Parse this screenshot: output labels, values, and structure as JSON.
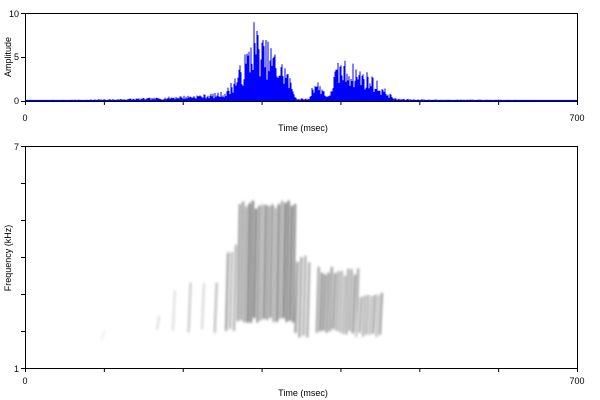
{
  "chart_data": [
    {
      "type": "area",
      "panel": "waveform",
      "ylabel": "Amplitude",
      "xlabel": "Time (msec)",
      "xlim": [
        0,
        700
      ],
      "ylim": [
        0,
        10
      ],
      "x_tick_labels": [
        "0",
        "700"
      ],
      "y_tick_labels": [
        "0",
        "5",
        "10"
      ],
      "grid": false,
      "series": [
        {
          "color": "#0000ff",
          "x": [
            0,
            100,
            170,
            195,
            215,
            240,
            255,
            275,
            285,
            290,
            300,
            315,
            322,
            330,
            345,
            360,
            367,
            378,
            385,
            392,
            400,
            410,
            420,
            430,
            440,
            450,
            470,
            500,
            700
          ],
          "values": [
            0.1,
            0.2,
            0.4,
            0.6,
            0.7,
            0.9,
            1.2,
            4.5,
            7.0,
            9.6,
            7.5,
            6.3,
            4.8,
            4.5,
            0.3,
            0.3,
            2.8,
            1.7,
            0.4,
            3.5,
            5.0,
            4.6,
            4.2,
            3.6,
            3.1,
            2.0,
            0.3,
            0.2,
            0.1
          ]
        }
      ]
    },
    {
      "type": "heatmap",
      "panel": "spectrogram",
      "ylabel": "Frequency (kHz)",
      "xlabel": "Time (msec)",
      "xlim": [
        0,
        700
      ],
      "ylim": [
        1,
        7
      ],
      "x_tick_labels": [
        "0",
        "700"
      ],
      "y_tick_labels": [
        "1",
        "7"
      ],
      "colormap": "grayscale",
      "grid": false,
      "segments": [
        {
          "t0": 95,
          "t1": 100,
          "f0": 1.8,
          "f1": 2.1,
          "intensity": 0.15
        },
        {
          "t0": 165,
          "t1": 170,
          "f0": 2.0,
          "f1": 2.5,
          "intensity": 0.2
        },
        {
          "t0": 185,
          "t1": 190,
          "f0": 2.0,
          "f1": 3.2,
          "intensity": 0.25
        },
        {
          "t0": 205,
          "t1": 210,
          "f0": 2.0,
          "f1": 3.2,
          "intensity": 0.3
        },
        {
          "t0": 222,
          "t1": 227,
          "f0": 2.0,
          "f1": 3.3,
          "intensity": 0.35
        },
        {
          "t0": 238,
          "t1": 243,
          "f0": 1.9,
          "f1": 3.3,
          "intensity": 0.4
        },
        {
          "t0": 255,
          "t1": 265,
          "f0": 2.0,
          "f1": 4.2,
          "intensity": 0.55
        },
        {
          "t0": 270,
          "t1": 340,
          "f0": 2.3,
          "f1": 5.4,
          "intensity": 0.85
        },
        {
          "t0": 343,
          "t1": 358,
          "f0": 1.9,
          "f1": 3.9,
          "intensity": 0.6
        },
        {
          "t0": 370,
          "t1": 420,
          "f0": 2.0,
          "f1": 3.6,
          "intensity": 0.7
        },
        {
          "t0": 420,
          "t1": 450,
          "f0": 1.9,
          "f1": 3.0,
          "intensity": 0.55
        }
      ]
    }
  ]
}
